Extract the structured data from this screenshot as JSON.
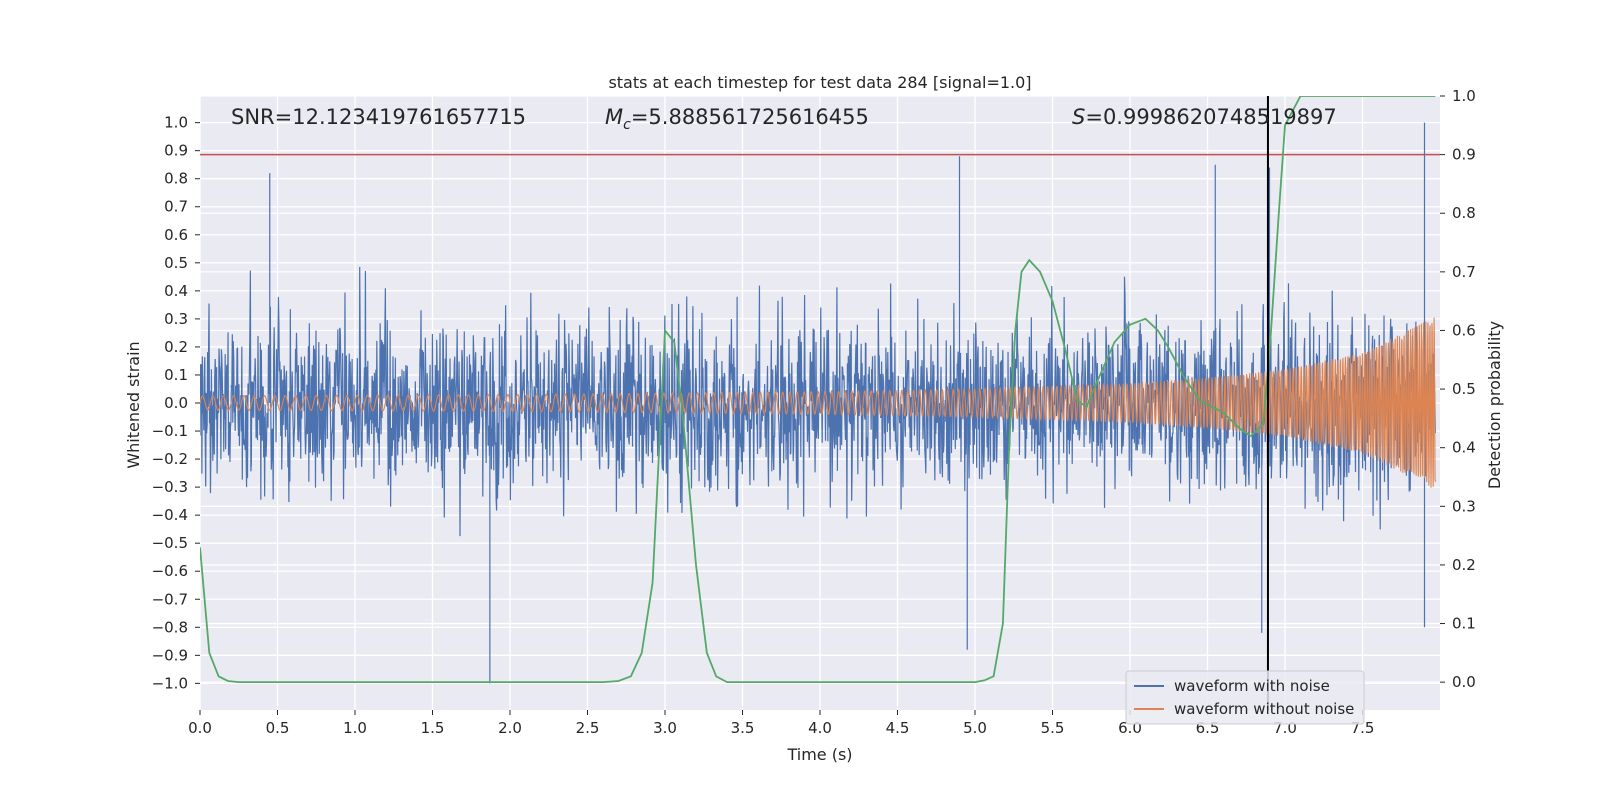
{
  "chart_data": {
    "type": "line",
    "title": "stats at each timestep for test data 284 [signal=1.0]",
    "xlabel": "Time (s)",
    "ylabel": "Whitened strain",
    "y2label": "Detection probability",
    "xlim": [
      0.0,
      8.0
    ],
    "ylim": [
      -1.095,
      1.095
    ],
    "y2lim": [
      -0.0475,
      1.0
    ],
    "x_ticks": [
      "0.0",
      "0.5",
      "1.0",
      "1.5",
      "2.0",
      "2.5",
      "3.0",
      "3.5",
      "4.0",
      "4.5",
      "5.0",
      "5.5",
      "6.0",
      "6.5",
      "7.0",
      "7.5"
    ],
    "y_ticks": [
      "1.0",
      "0.9",
      "0.8",
      "0.7",
      "0.6",
      "0.5",
      "0.4",
      "0.3",
      "0.2",
      "0.1",
      "0.0",
      "−0.1",
      "−0.2",
      "−0.3",
      "−0.4",
      "−0.5",
      "−0.6",
      "−0.7",
      "−0.8",
      "−0.9",
      "−1.0"
    ],
    "y2_ticks": [
      "1.0",
      "0.9",
      "0.8",
      "0.7",
      "0.6",
      "0.5",
      "0.4",
      "0.3",
      "0.2",
      "0.1",
      "0.0"
    ],
    "grid": true,
    "legend_placement": "lower-right",
    "annotations": {
      "snr": "SNR=12.123419761657715",
      "mc_sym": "M",
      "mc_sub": "c",
      "mc_val": "=5.888561725616455",
      "s_sym": "S",
      "s_val": "=0.9998620748519897"
    },
    "threshold_line": {
      "y2": 0.9,
      "color": "#c44e52"
    },
    "detection_vline": {
      "x": 6.89,
      "color": "#000000"
    },
    "series": [
      {
        "name": "waveform with noise",
        "color": "#4c72b0",
        "envelope_typical": 0.4,
        "notable_peaks": [
          {
            "x": 0.45,
            "y": 0.82
          },
          {
            "x": 4.9,
            "y": 0.88
          },
          {
            "x": 6.55,
            "y": 0.85
          },
          {
            "x": 6.9,
            "y": 0.84
          },
          {
            "x": 7.9,
            "y": 1.0
          },
          {
            "x": 1.87,
            "y": -1.0
          },
          {
            "x": 4.95,
            "y": -0.88
          },
          {
            "x": 6.85,
            "y": -0.82
          },
          {
            "x": 7.9,
            "y": -0.8
          }
        ]
      },
      {
        "name": "waveform without noise",
        "color": "#dd8452",
        "amplitude_points": [
          [
            0.0,
            0.025
          ],
          [
            2.0,
            0.03
          ],
          [
            4.0,
            0.04
          ],
          [
            5.0,
            0.05
          ],
          [
            6.0,
            0.07
          ],
          [
            6.5,
            0.09
          ],
          [
            7.0,
            0.12
          ],
          [
            7.5,
            0.18
          ],
          [
            7.8,
            0.26
          ],
          [
            7.97,
            0.31
          ]
        ]
      },
      {
        "name": "detection probability",
        "color": "#55a868",
        "axis": "right",
        "x": [
          0.0,
          0.06,
          0.12,
          0.18,
          0.25,
          0.5,
          1.0,
          2.0,
          2.6,
          2.7,
          2.78,
          2.85,
          2.92,
          3.0,
          3.06,
          3.12,
          3.2,
          3.27,
          3.33,
          3.4,
          3.6,
          4.0,
          4.5,
          5.0,
          5.06,
          5.12,
          5.18,
          5.22,
          5.26,
          5.3,
          5.35,
          5.42,
          5.5,
          5.58,
          5.66,
          5.72,
          5.8,
          5.9,
          6.0,
          6.1,
          6.18,
          6.25,
          6.35,
          6.45,
          6.6,
          6.72,
          6.78,
          6.86,
          6.91,
          6.96,
          7.0,
          7.1,
          7.5,
          7.97
        ],
        "y": [
          0.23,
          0.05,
          0.01,
          0.002,
          0.0,
          0.0,
          0.0,
          0.0,
          0.0,
          0.002,
          0.01,
          0.05,
          0.17,
          0.6,
          0.58,
          0.44,
          0.2,
          0.05,
          0.01,
          0.0,
          0.0,
          0.0,
          0.0,
          0.0,
          0.003,
          0.01,
          0.1,
          0.4,
          0.6,
          0.7,
          0.72,
          0.7,
          0.65,
          0.57,
          0.48,
          0.47,
          0.52,
          0.58,
          0.61,
          0.62,
          0.6,
          0.57,
          0.52,
          0.48,
          0.46,
          0.43,
          0.42,
          0.44,
          0.6,
          0.8,
          0.95,
          1.0,
          1.0,
          1.0
        ]
      }
    ]
  }
}
